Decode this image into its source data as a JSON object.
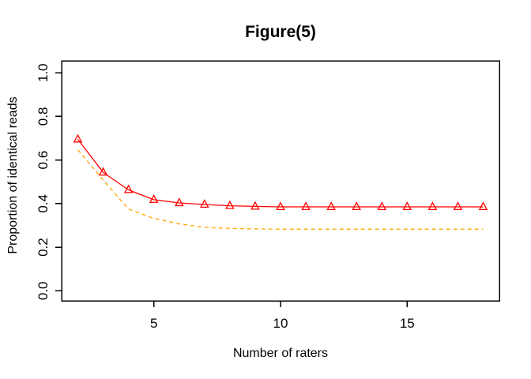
{
  "chart_data": {
    "type": "line",
    "title": "Figure(5)",
    "xlabel": "Number of raters",
    "ylabel": "Proportion of identical reads",
    "x": [
      2,
      3,
      4,
      5,
      6,
      7,
      8,
      9,
      10,
      11,
      12,
      13,
      14,
      15,
      16,
      17,
      18
    ],
    "series": [
      {
        "id": "red-solid-triangles",
        "color": "#ff0000",
        "line_style": "solid",
        "marker": "triangle-open",
        "values": [
          0.695,
          0.543,
          0.463,
          0.418,
          0.403,
          0.396,
          0.39,
          0.387,
          0.385,
          0.385,
          0.385,
          0.385,
          0.385,
          0.385,
          0.385,
          0.385,
          0.385
        ]
      },
      {
        "id": "orange-dashed",
        "color": "#ffa500",
        "line_style": "dashed",
        "marker": "none",
        "values": [
          0.647,
          0.508,
          0.375,
          0.332,
          0.307,
          0.291,
          0.286,
          0.284,
          0.283,
          0.283,
          0.283,
          0.283,
          0.283,
          0.283,
          0.283,
          0.283,
          0.283
        ]
      }
    ],
    "xticks": {
      "values": [
        5,
        10,
        15
      ],
      "labels": [
        "5",
        "10",
        "15"
      ]
    },
    "yticks": {
      "values": [
        0.0,
        0.2,
        0.4,
        0.6,
        0.8,
        1.0
      ],
      "labels": [
        "0.0",
        "0.2",
        "0.4",
        "0.6",
        "0.8",
        "1.0"
      ]
    },
    "xlim": [
      1.36,
      18.64
    ],
    "ylim": [
      -0.046,
      1.055
    ],
    "grid": false,
    "legend": "none",
    "colors": {
      "axis": "#000000",
      "background": "#ffffff"
    }
  }
}
